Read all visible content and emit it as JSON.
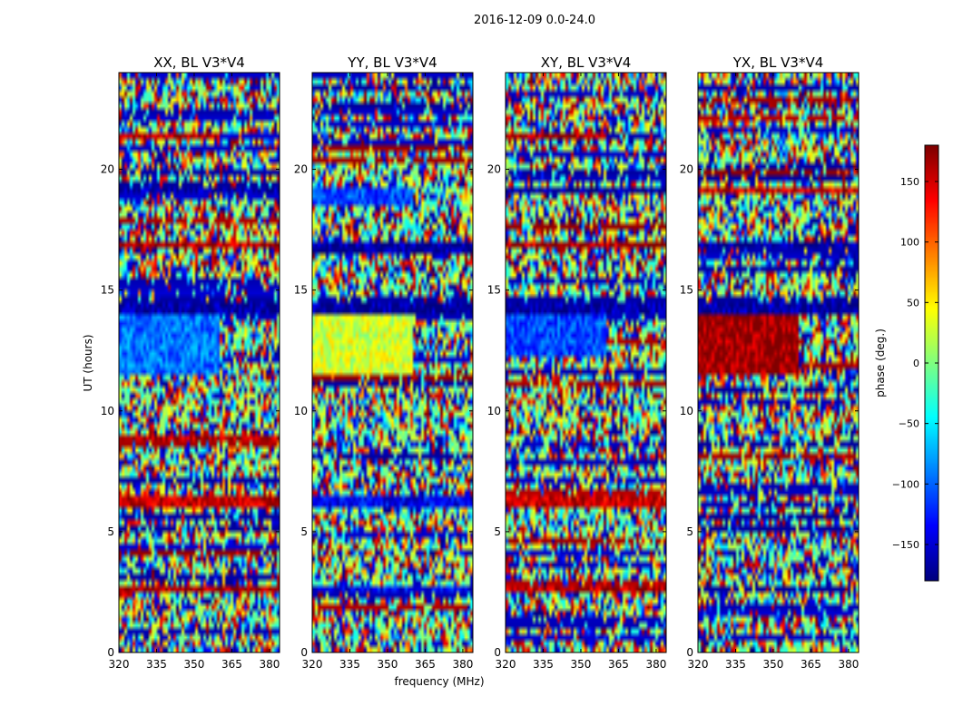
{
  "chart_data": {
    "type": "heatmap",
    "suptitle": "2016-12-09 0.0-24.0",
    "xlabel": "frequency (MHz)",
    "ylabel": "UT (hours)",
    "xlim": [
      320,
      384
    ],
    "xticks": [
      320,
      335,
      350,
      365,
      380
    ],
    "ylim": [
      0,
      24
    ],
    "yticks": [
      0,
      5,
      10,
      15,
      20
    ],
    "colorbar": {
      "label": "phase (deg.)",
      "range": [
        -180,
        180
      ],
      "ticks": [
        -150,
        -100,
        -50,
        0,
        50,
        100,
        150
      ],
      "tick_labels": [
        "−150",
        "−100",
        "−50",
        "0",
        "50",
        "100",
        "150"
      ],
      "colormap": "jet",
      "colors": [
        "#00007f",
        "#0000ff",
        "#007fff",
        "#00ffff",
        "#7fff7f",
        "#ffff00",
        "#ff7f00",
        "#ff0000",
        "#7f0000"
      ]
    },
    "panels": [
      {
        "title": "XX, BL V3*V4",
        "dominant_phase": [
          {
            "t0": 11.5,
            "t1": 14.0,
            "f0": 320,
            "f1": 360,
            "phase": -95
          },
          {
            "t0": 21.3,
            "t1": 21.5,
            "f0": 320,
            "f1": 360,
            "phase": 165
          },
          {
            "t0": 18.9,
            "t1": 19.2,
            "f0": 320,
            "f1": 384,
            "phase": -170
          },
          {
            "t0": 16.8,
            "t1": 17.0,
            "f0": 320,
            "f1": 384,
            "phase": 160
          },
          {
            "t0": 14.1,
            "t1": 14.4,
            "f0": 320,
            "f1": 384,
            "phase": -170
          },
          {
            "t0": 8.8,
            "t1": 9.0,
            "f0": 320,
            "f1": 384,
            "phase": 160
          },
          {
            "t0": 6.0,
            "t1": 6.4,
            "f0": 320,
            "f1": 384,
            "phase": 155
          },
          {
            "t0": 2.6,
            "t1": 2.8,
            "f0": 320,
            "f1": 384,
            "phase": 165
          }
        ]
      },
      {
        "title": "YY, BL V3*V4",
        "dominant_phase": [
          {
            "t0": 11.5,
            "t1": 14.0,
            "f0": 320,
            "f1": 360,
            "phase": 30
          },
          {
            "t0": 18.6,
            "t1": 19.2,
            "f0": 320,
            "f1": 360,
            "phase": -110
          },
          {
            "t0": 16.5,
            "t1": 17.0,
            "f0": 320,
            "f1": 384,
            "phase": -170
          },
          {
            "t0": 14.1,
            "t1": 14.4,
            "f0": 320,
            "f1": 384,
            "phase": -170
          },
          {
            "t0": 6.0,
            "t1": 6.4,
            "f0": 320,
            "f1": 384,
            "phase": -140
          },
          {
            "t0": 2.6,
            "t1": 2.8,
            "f0": 320,
            "f1": 384,
            "phase": -140
          }
        ]
      },
      {
        "title": "XY, BL V3*V4",
        "dominant_phase": [
          {
            "t0": 12.3,
            "t1": 14.0,
            "f0": 320,
            "f1": 360,
            "phase": -110
          },
          {
            "t0": 21.3,
            "t1": 21.5,
            "f0": 320,
            "f1": 360,
            "phase": 160
          },
          {
            "t0": 18.9,
            "t1": 19.2,
            "f0": 320,
            "f1": 384,
            "phase": -170
          },
          {
            "t0": 16.8,
            "t1": 17.0,
            "f0": 320,
            "f1": 384,
            "phase": 160
          },
          {
            "t0": 14.1,
            "t1": 14.4,
            "f0": 320,
            "f1": 384,
            "phase": -170
          },
          {
            "t0": 6.0,
            "t1": 6.4,
            "f0": 320,
            "f1": 384,
            "phase": 150
          },
          {
            "t0": 2.6,
            "t1": 2.8,
            "f0": 320,
            "f1": 384,
            "phase": 160
          }
        ]
      },
      {
        "title": "YX, BL V3*V4",
        "dominant_phase": [
          {
            "t0": 11.5,
            "t1": 14.0,
            "f0": 320,
            "f1": 360,
            "phase": 170
          },
          {
            "t0": 18.9,
            "t1": 19.2,
            "f0": 320,
            "f1": 384,
            "phase": 150
          },
          {
            "t0": 16.8,
            "t1": 17.0,
            "f0": 320,
            "f1": 384,
            "phase": -170
          },
          {
            "t0": 14.1,
            "t1": 14.4,
            "f0": 320,
            "f1": 384,
            "phase": -170
          },
          {
            "t0": 3.4,
            "t1": 3.6,
            "f0": 320,
            "f1": 384,
            "phase": -170
          }
        ]
      }
    ]
  }
}
